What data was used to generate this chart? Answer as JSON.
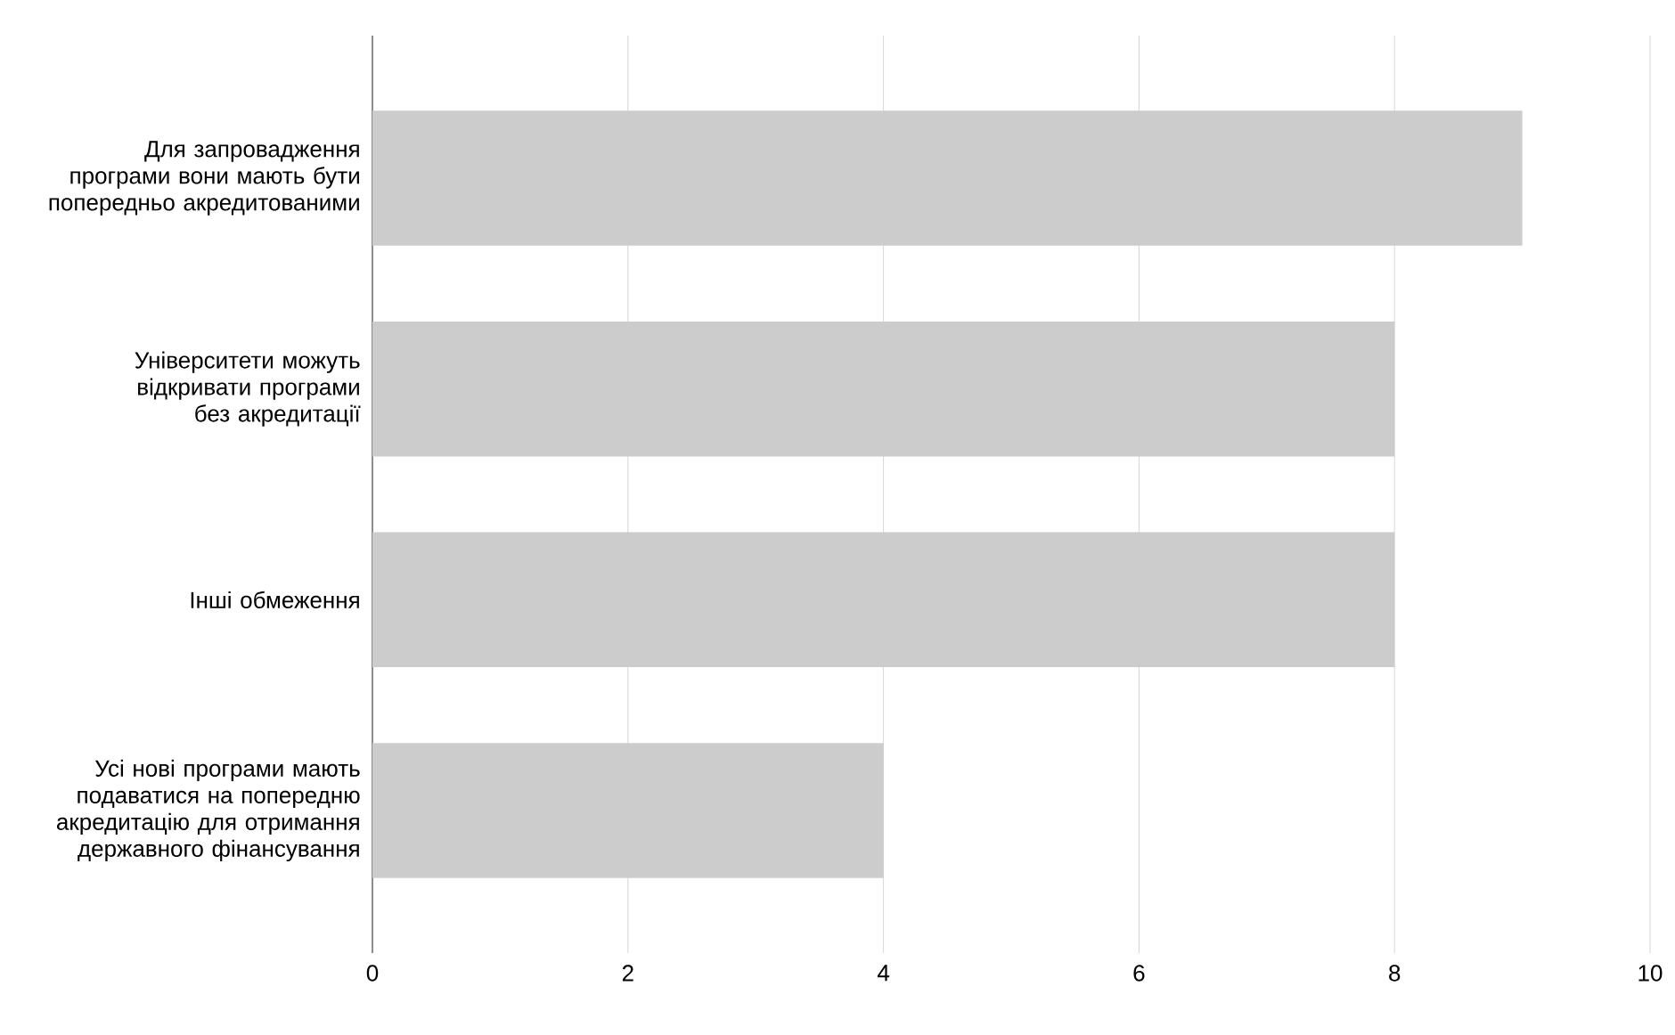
{
  "chart_data": {
    "type": "bar",
    "orientation": "horizontal",
    "categories": [
      "Для запровадження програми вони мають бути попередньо акредитованими",
      "Університети можуть відкривати програми без акредитації",
      "Інші обмеження",
      "Усі нові програми мають подаватися на попередню акредитацію для отримання державного фінансування"
    ],
    "values": [
      9,
      8,
      8,
      4
    ],
    "color": "#cccccc",
    "xlim": [
      0,
      10
    ],
    "xticks": [
      0,
      2,
      4,
      6,
      8,
      10
    ],
    "grid": "x"
  }
}
